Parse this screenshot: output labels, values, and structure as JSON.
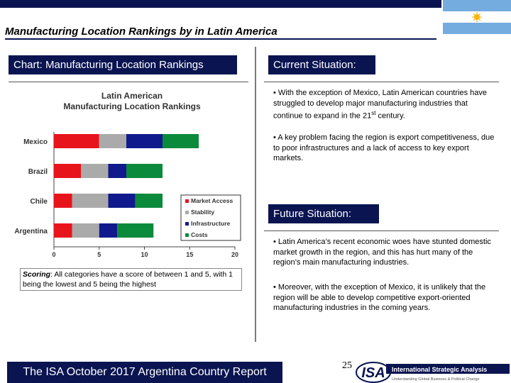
{
  "title": "Manufacturing Location Rankings by in Latin America",
  "left_header": "Chart: Manufacturing Location Rankings",
  "chart_data": {
    "type": "bar",
    "orientation": "horizontal",
    "stacked": true,
    "title": "Latin American Manufacturing Location Rankings",
    "categories": [
      "Mexico",
      "Brazil",
      "Chile",
      "Argentina"
    ],
    "series": [
      {
        "name": "Market Access",
        "color": "#e8141b",
        "values": [
          5,
          3,
          2,
          2
        ]
      },
      {
        "name": "Stability",
        "color": "#aaaaaa",
        "values": [
          3,
          3,
          4,
          3
        ]
      },
      {
        "name": "Infrastructure",
        "color": "#101a8c",
        "values": [
          4,
          2,
          3,
          2
        ]
      },
      {
        "name": "Costs",
        "color": "#0c8a3c",
        "values": [
          4,
          4,
          3,
          4
        ]
      }
    ],
    "x_ticks": [
      0,
      5,
      10,
      15,
      20
    ],
    "xlim": [
      0,
      20
    ],
    "grid": false,
    "legend_placement": "bottom-right"
  },
  "scoring": {
    "label": "Scoring",
    "text": ": All categories have a score of between 1 and 5, with 1 being the lowest and 5 being the highest"
  },
  "current": {
    "header": "Current Situation:",
    "bullet1_a": "• With the exception of Mexico, Latin American countries have struggled to develop major manufacturing industries that continue to expand in the 21",
    "bullet1_sup": "st",
    "bullet1_b": " century.",
    "bullet2": "• A key problem facing the region is export competitiveness, due to poor infrastructures and a lack of access to key export markets."
  },
  "future": {
    "header": "Future Situation:",
    "bullet1": "• Latin America’s recent economic woes have stunted domestic market growth in the region, and this has hurt many of the region’s main manufacturing industries.",
    "bullet2": "• Moreover, with the exception of Mexico, it is unlikely that the region will be able to develop competitive export-oriented manufacturing industries in the coming years."
  },
  "footer": "The ISA October 2017 Argentina Country Report",
  "page_number": "25",
  "logo": {
    "mark": "ISA",
    "name": "International Strategic Analysis",
    "tagline": "Understanding Global Business & Political Change"
  },
  "flag": {
    "name": "argentina-flag",
    "blue": "#74acdf",
    "sun": "#f6b40e"
  },
  "colors": {
    "navy": "#0a1450"
  }
}
